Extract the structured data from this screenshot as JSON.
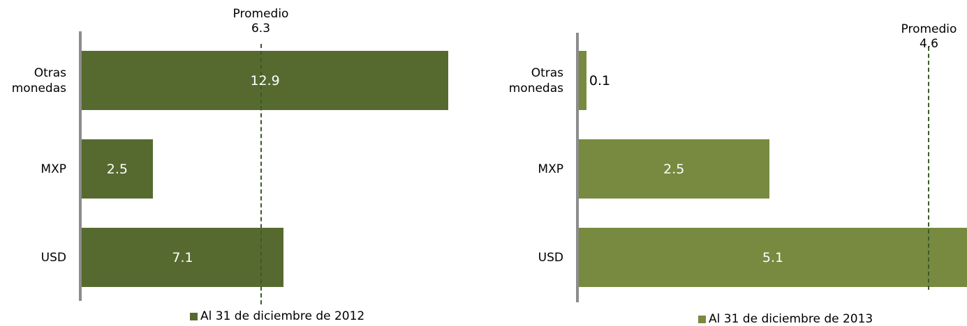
{
  "chart_data": [
    {
      "type": "bar",
      "orientation": "horizontal",
      "categories": [
        "Otras monedas",
        "MXP",
        "USD"
      ],
      "series": [
        {
          "name": "Al 31 de diciembre de 2012",
          "color": "#566a30",
          "values": [
            12.9,
            2.5,
            7.1
          ]
        }
      ],
      "xlim": [
        0,
        14
      ],
      "average": {
        "label": "Promedio",
        "value": 6.3
      }
    },
    {
      "type": "bar",
      "orientation": "horizontal",
      "categories": [
        "Otras monedas",
        "MXP",
        "USD"
      ],
      "series": [
        {
          "name": "Al 31 de diciembre de 2013",
          "color": "#778a40",
          "values": [
            0.1,
            2.5,
            5.1
          ]
        }
      ],
      "xlim": [
        0,
        5.1
      ],
      "average": {
        "label": "Promedio",
        "value": 4.6
      }
    }
  ]
}
